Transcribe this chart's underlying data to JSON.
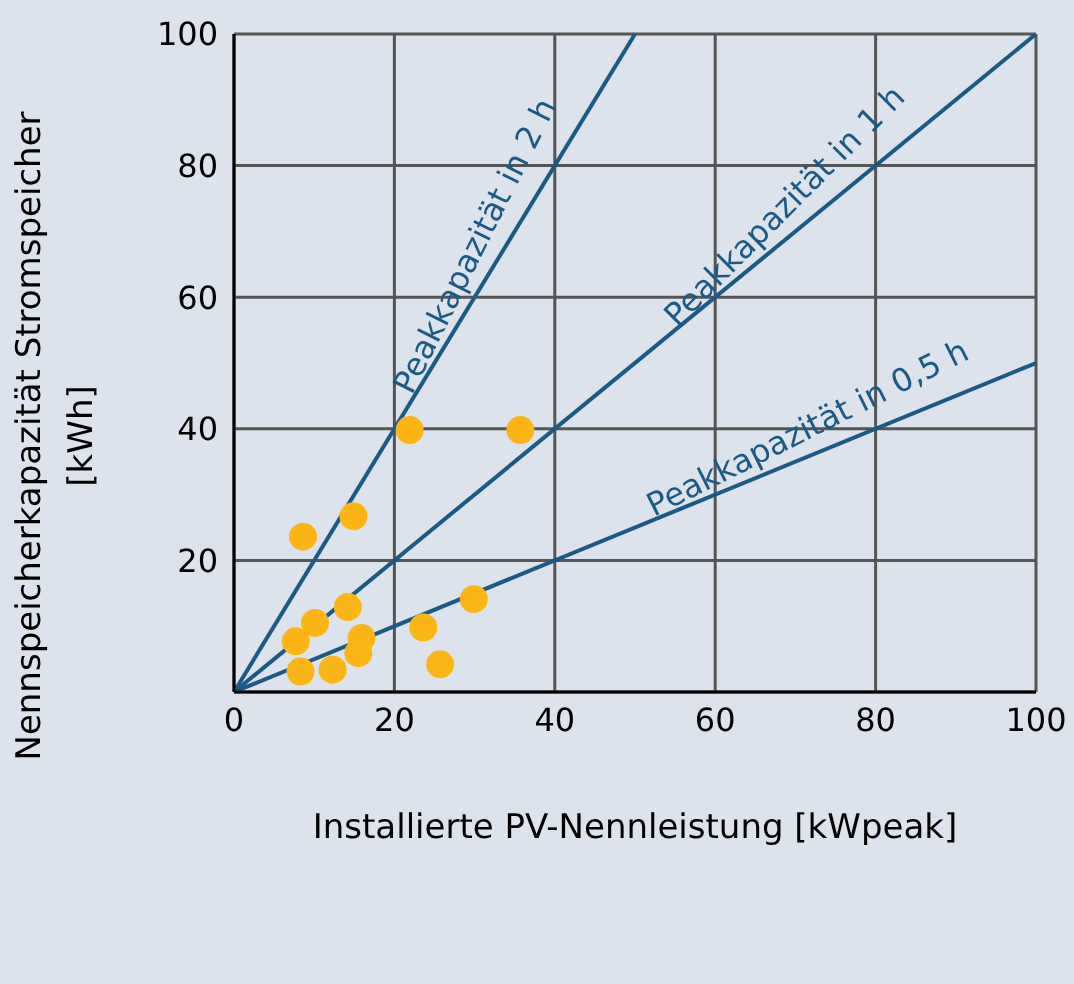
{
  "chart_data": {
    "type": "scatter",
    "xlabel": "Installierte PV-Nennleistung [kWpeak]",
    "ylabel": "Nennspeicherkapazität Stromspeicher\n[kWh]",
    "xlim": [
      0,
      100
    ],
    "xticks": [
      0,
      20,
      40,
      60,
      80,
      100
    ],
    "ylim": [
      0,
      100
    ],
    "yticks": [
      {
        "value": 0,
        "label": null
      },
      20,
      40,
      60,
      80,
      100
    ],
    "grid": true,
    "series": [
      {
        "type": "line",
        "color": "#1c5a86",
        "marker": "none",
        "x": [
          0,
          50
        ],
        "values": [
          0,
          100
        ]
      },
      {
        "type": "line",
        "color": "#1c5a86",
        "marker": "none",
        "x": [
          0,
          100
        ],
        "values": [
          0,
          100
        ]
      },
      {
        "type": "line",
        "color": "#1c5a86",
        "marker": "none",
        "x": [
          0,
          100
        ],
        "values": [
          0,
          50
        ]
      },
      {
        "color": "#fbb616",
        "marker": "circle",
        "x": [
          21.9,
          35.7,
          14.9,
          8.6,
          14.2,
          29.9,
          10.1,
          23.6,
          7.7,
          15.9,
          15.5,
          8.3,
          12.3,
          25.7
        ],
        "values": [
          39.8,
          39.8,
          26.7,
          23.6,
          12.9,
          14.1,
          10.5,
          9.8,
          7.7,
          8.2,
          5.9,
          3.1,
          3.4,
          4.2
        ]
      }
    ],
    "annotations": [
      {
        "text": "Peakkapazität in 2 h",
        "x": 33,
        "y": 66
      },
      {
        "text": "Peakkapazität in 1 h",
        "x": 71,
        "y": 71
      },
      {
        "text": "Peakkapazität in 0,5 h",
        "x": 73,
        "y": 36.5
      }
    ]
  }
}
